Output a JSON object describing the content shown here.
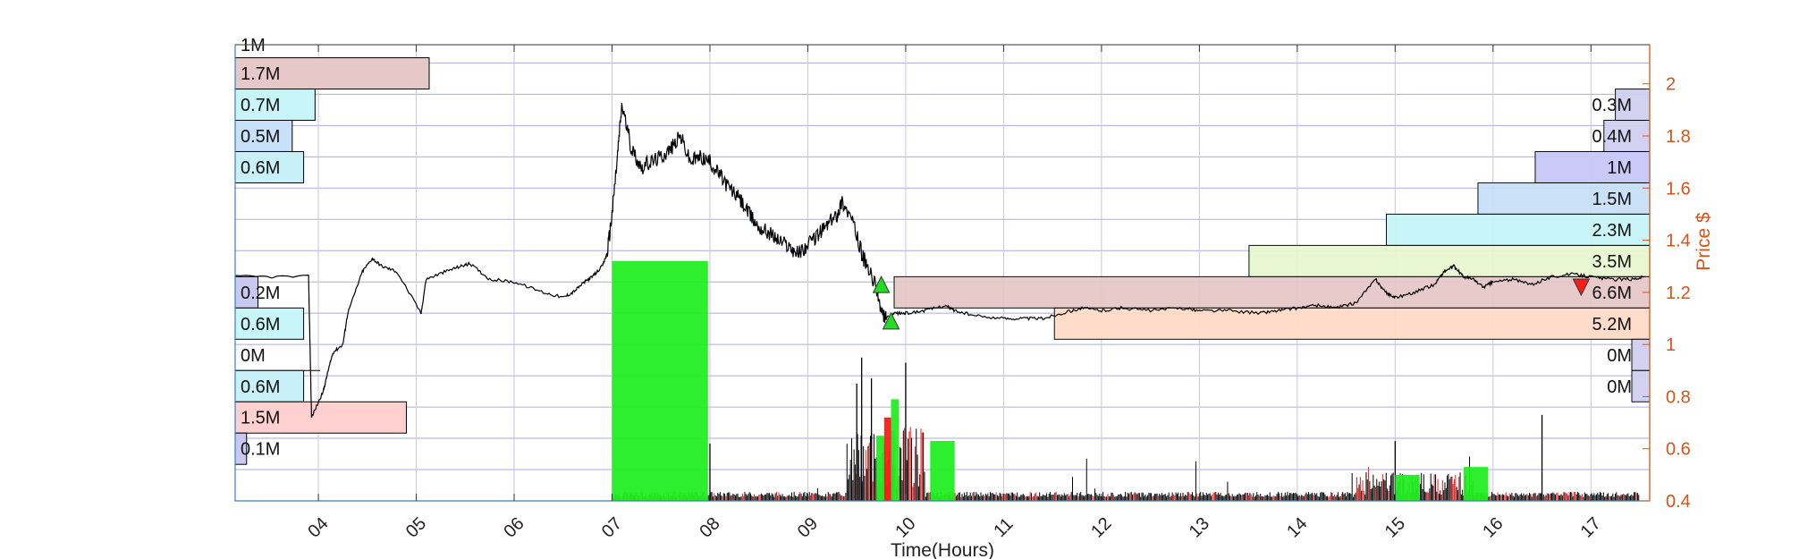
{
  "colors": {
    "price_line": "#000000",
    "buy_volume": "#22ee22",
    "sell_volume": "#ff1a1a",
    "grid": "#6666cc",
    "right_axis": "#d95319",
    "buy_marker": "#22dd22",
    "sell_marker": "#ff1a1a"
  },
  "chart_data": {
    "type": "line",
    "xlabel": "Time(Hours)",
    "ylabel": "Price $",
    "x_ticks": [
      "04",
      "05",
      "06",
      "07",
      "08",
      "09",
      "10",
      "11",
      "12",
      "13",
      "14",
      "15",
      "16",
      "17"
    ],
    "xlim": [
      3.15,
      17.6
    ],
    "ylim": [
      0.4,
      2.15
    ],
    "y_ticks": [
      0.4,
      0.6,
      0.8,
      1,
      1.2,
      1.4,
      1.6,
      1.8,
      2
    ],
    "grid": true,
    "price_series": {
      "x": [
        3.15,
        3.9,
        3.93,
        4.05,
        4.1,
        4.15,
        4.25,
        4.3,
        4.45,
        4.55,
        4.65,
        4.8,
        5.05,
        5.1,
        5.3,
        5.45,
        5.55,
        5.75,
        6.0,
        6.3,
        6.5,
        6.6,
        6.72,
        6.8,
        6.9,
        6.95,
        7.0,
        7.05,
        7.1,
        7.2,
        7.3,
        7.4,
        7.5,
        7.6,
        7.7,
        7.8,
        7.9,
        8.0,
        8.1,
        8.2,
        8.3,
        8.4,
        8.5,
        8.6,
        8.7,
        8.8,
        8.9,
        9.0,
        9.1,
        9.2,
        9.3,
        9.35,
        9.45,
        9.55,
        9.6,
        9.7,
        9.75,
        9.8,
        9.9,
        10.0,
        10.2,
        10.4,
        10.5,
        10.7,
        11.0,
        11.2,
        11.4,
        11.6,
        11.8,
        12.0,
        12.2,
        12.5,
        12.8,
        13.0,
        13.3,
        13.6,
        13.8,
        14.0,
        14.2,
        14.4,
        14.6,
        14.8,
        14.9,
        15.0,
        15.2,
        15.4,
        15.5,
        15.6,
        15.7,
        15.8,
        15.9,
        16.0,
        16.2,
        16.4,
        16.6,
        16.8,
        17.0,
        17.2,
        17.4,
        17.55
      ],
      "y": [
        1.26,
        1.26,
        0.72,
        0.82,
        0.9,
        0.97,
        1.0,
        1.12,
        1.28,
        1.33,
        1.3,
        1.28,
        1.12,
        1.25,
        1.28,
        1.3,
        1.31,
        1.25,
        1.24,
        1.2,
        1.18,
        1.2,
        1.24,
        1.26,
        1.3,
        1.35,
        1.5,
        1.7,
        1.92,
        1.75,
        1.68,
        1.7,
        1.72,
        1.75,
        1.8,
        1.7,
        1.72,
        1.7,
        1.65,
        1.6,
        1.56,
        1.5,
        1.45,
        1.43,
        1.4,
        1.38,
        1.35,
        1.38,
        1.42,
        1.46,
        1.5,
        1.55,
        1.48,
        1.35,
        1.3,
        1.22,
        1.12,
        1.1,
        1.12,
        1.12,
        1.13,
        1.15,
        1.13,
        1.11,
        1.1,
        1.1,
        1.1,
        1.12,
        1.14,
        1.13,
        1.14,
        1.13,
        1.14,
        1.13,
        1.13,
        1.12,
        1.13,
        1.14,
        1.15,
        1.14,
        1.16,
        1.25,
        1.2,
        1.18,
        1.2,
        1.23,
        1.28,
        1.3,
        1.26,
        1.25,
        1.22,
        1.24,
        1.25,
        1.23,
        1.26,
        1.27,
        1.26,
        1.25,
        1.25,
        1.26
      ]
    },
    "volume_blocks": [
      {
        "side": "buy",
        "x_start": 7.0,
        "x_end": 7.98,
        "price_top": 1.32
      },
      {
        "side": "buy",
        "x_start": 10.25,
        "x_end": 10.5,
        "price_top": 0.63
      },
      {
        "side": "buy",
        "x_start": 9.85,
        "x_end": 9.93,
        "price_top": 0.79
      },
      {
        "side": "buy",
        "x_start": 9.7,
        "x_end": 9.78,
        "price_top": 0.65
      },
      {
        "side": "sell",
        "x_start": 9.78,
        "x_end": 9.85,
        "price_top": 0.72
      },
      {
        "side": "buy",
        "x_start": 15.0,
        "x_end": 15.25,
        "price_top": 0.5
      },
      {
        "side": "buy",
        "x_start": 15.7,
        "x_end": 15.95,
        "price_top": 0.53
      }
    ],
    "trade_markers": [
      {
        "side": "buy",
        "x": 9.75,
        "y": 1.23
      },
      {
        "side": "buy",
        "x": 9.85,
        "y": 1.09
      },
      {
        "side": "sell",
        "x": 16.9,
        "y": 1.22
      }
    ],
    "left_volume_profile": [
      {
        "label": "1M",
        "price_low": 2.15,
        "price_high": 2.2,
        "volume_m": 1.0,
        "color": "#e8f8d0"
      },
      {
        "label": "1.7M",
        "price_low": 1.98,
        "price_high": 2.1,
        "volume_m": 1.7,
        "color": "#e6c8c8"
      },
      {
        "label": "0.7M",
        "price_low": 1.86,
        "price_high": 1.98,
        "volume_m": 0.7,
        "color": "#c8f5f8"
      },
      {
        "label": "0.5M",
        "price_low": 1.74,
        "price_high": 1.86,
        "volume_m": 0.5,
        "color": "#c8e0f8"
      },
      {
        "label": "0.6M",
        "price_low": 1.62,
        "price_high": 1.74,
        "volume_m": 0.6,
        "color": "#c8f0f8"
      },
      {
        "label": "0.2M",
        "price_low": 1.14,
        "price_high": 1.26,
        "volume_m": 0.2,
        "color": "#c8c8f0"
      },
      {
        "label": "0.6M",
        "price_low": 1.02,
        "price_high": 1.14,
        "volume_m": 0.6,
        "color": "#c8f5f8"
      },
      {
        "label": "0M",
        "price_low": 0.9,
        "price_high": 1.02,
        "volume_m": 0.0,
        "color": "#ffffff"
      },
      {
        "label": "0.6M",
        "price_low": 0.78,
        "price_high": 0.9,
        "volume_m": 0.6,
        "color": "#c8f0f8"
      },
      {
        "label": "1.5M",
        "price_low": 0.66,
        "price_high": 0.78,
        "volume_m": 1.5,
        "color": "#ffd0d0"
      },
      {
        "label": "0.1M",
        "price_low": 0.54,
        "price_high": 0.66,
        "volume_m": 0.1,
        "color": "#c8c8f0"
      }
    ],
    "right_volume_profile": [
      {
        "label": "0.3M",
        "price_low": 1.86,
        "price_high": 1.98,
        "volume_m": 0.3,
        "color": "#d0d0f0"
      },
      {
        "label": "0.4M",
        "price_low": 1.74,
        "price_high": 1.86,
        "volume_m": 0.4,
        "color": "#d0d0f0"
      },
      {
        "label": "1M",
        "price_low": 1.62,
        "price_high": 1.74,
        "volume_m": 1.0,
        "color": "#c8c8f8"
      },
      {
        "label": "1.5M",
        "price_low": 1.5,
        "price_high": 1.62,
        "volume_m": 1.5,
        "color": "#c8e0f8"
      },
      {
        "label": "2.3M",
        "price_low": 1.38,
        "price_high": 1.5,
        "volume_m": 2.3,
        "color": "#c8f5f8"
      },
      {
        "label": "3.5M",
        "price_low": 1.26,
        "price_high": 1.38,
        "volume_m": 3.5,
        "color": "#e8f8d0"
      },
      {
        "label": "6.6M",
        "price_low": 1.14,
        "price_high": 1.26,
        "volume_m": 6.6,
        "color": "#e6c8c8"
      },
      {
        "label": "5.2M",
        "price_low": 1.02,
        "price_high": 1.14,
        "volume_m": 5.2,
        "color": "#ffdcc8"
      },
      {
        "label": "0M",
        "price_low": 0.9,
        "price_high": 1.02,
        "volume_m": 0.0,
        "color": "#d0d0f0"
      },
      {
        "label": "0M",
        "price_low": 0.78,
        "price_high": 0.9,
        "volume_m": 0.0,
        "color": "#d0d0f0"
      }
    ]
  }
}
